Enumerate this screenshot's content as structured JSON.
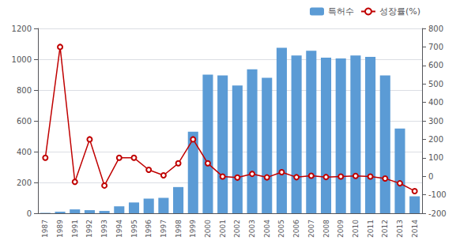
{
  "chart_data": {
    "type": "bar",
    "categories": [
      "1987",
      "1989",
      "1991",
      "1992",
      "1993",
      "1994",
      "1995",
      "1996",
      "1997",
      "1998",
      "1999",
      "2000",
      "2001",
      "2002",
      "2003",
      "2004",
      "2005",
      "2006",
      "2007",
      "2008",
      "2009",
      "2010",
      "2011",
      "2012",
      "2013",
      "2014"
    ],
    "series": [
      {
        "name": "특허수",
        "type": "bar",
        "color": "#5B9BD5",
        "values": [
          2,
          10,
          25,
          20,
          15,
          45,
          70,
          95,
          100,
          170,
          530,
          900,
          895,
          830,
          935,
          880,
          1075,
          1025,
          1055,
          1010,
          1005,
          1025,
          1015,
          895,
          550,
          110
        ]
      },
      {
        "name": "성장률(%)",
        "type": "line",
        "color": "#C00000",
        "axis": "y2",
        "values": [
          100,
          700,
          -30,
          200,
          -50,
          100,
          100,
          35,
          5,
          70,
          200,
          70,
          -1,
          -7,
          13,
          -6,
          22,
          -5,
          3,
          -4,
          -1,
          2,
          -1,
          -12,
          -38,
          -80
        ]
      }
    ],
    "ylim": [
      0,
      1200
    ],
    "yticks": [
      0,
      200,
      400,
      600,
      800,
      1000,
      1200
    ],
    "y2lim": [
      -200,
      800
    ],
    "y2ticks": [
      -200,
      -100,
      0,
      100,
      200,
      300,
      400,
      500,
      600,
      700,
      800
    ],
    "grid": true,
    "legend": "upper right"
  }
}
